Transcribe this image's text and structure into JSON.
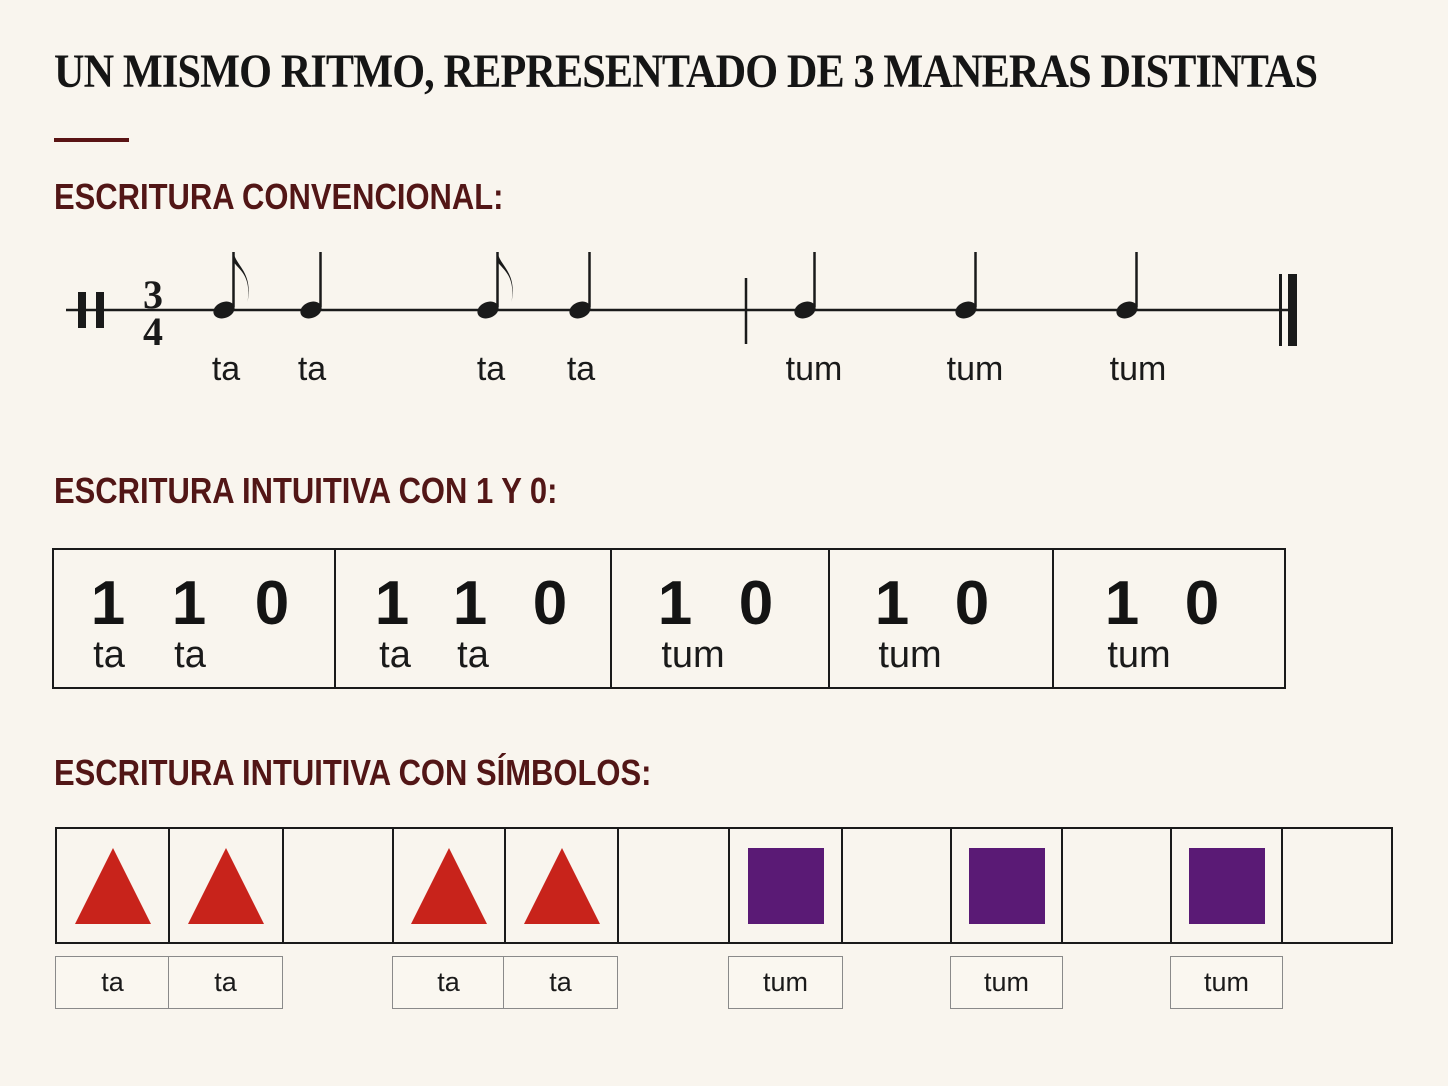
{
  "title": "UN MISMO RITMO, REPRESENTADO DE 3 MANERAS DISTINTAS",
  "sections": {
    "conventional": "ESCRITURA CONVENCIONAL:",
    "binary": "ESCRITURA INTUITIVA CON 1 Y 0:",
    "symbols": "ESCRITURA INTUITIVA CON SÍMBOLOS:"
  },
  "staff": {
    "time_signature": {
      "top": "3",
      "bottom": "4"
    },
    "notes": [
      {
        "type": "eighth",
        "syllable": "ta"
      },
      {
        "type": "quarter",
        "syllable": "ta"
      },
      {
        "type": "eighth",
        "syllable": "ta"
      },
      {
        "type": "quarter",
        "syllable": "ta"
      },
      {
        "type": "quarter",
        "syllable": "tum"
      },
      {
        "type": "quarter",
        "syllable": "tum"
      },
      {
        "type": "quarter",
        "syllable": "tum"
      }
    ]
  },
  "binary": {
    "groups": [
      {
        "digits": [
          "1",
          "1",
          "0"
        ],
        "syllables": [
          "ta",
          "ta"
        ]
      },
      {
        "digits": [
          "1",
          "1",
          "0"
        ],
        "syllables": [
          "ta",
          "ta"
        ]
      },
      {
        "digits": [
          "1",
          "0"
        ],
        "syllables": [
          "tum"
        ]
      },
      {
        "digits": [
          "1",
          "0"
        ],
        "syllables": [
          "tum"
        ]
      },
      {
        "digits": [
          "1",
          "0"
        ],
        "syllables": [
          "tum"
        ]
      }
    ]
  },
  "symbols": {
    "cells": [
      "triangle",
      "triangle",
      "empty",
      "triangle",
      "triangle",
      "empty",
      "square",
      "empty",
      "square",
      "empty",
      "square",
      "empty"
    ],
    "labels": [
      "ta",
      "ta",
      "ta",
      "ta",
      "tum",
      "tum",
      "tum"
    ],
    "colors": {
      "triangle": "#c8231b",
      "square": "#5a1a75"
    }
  }
}
